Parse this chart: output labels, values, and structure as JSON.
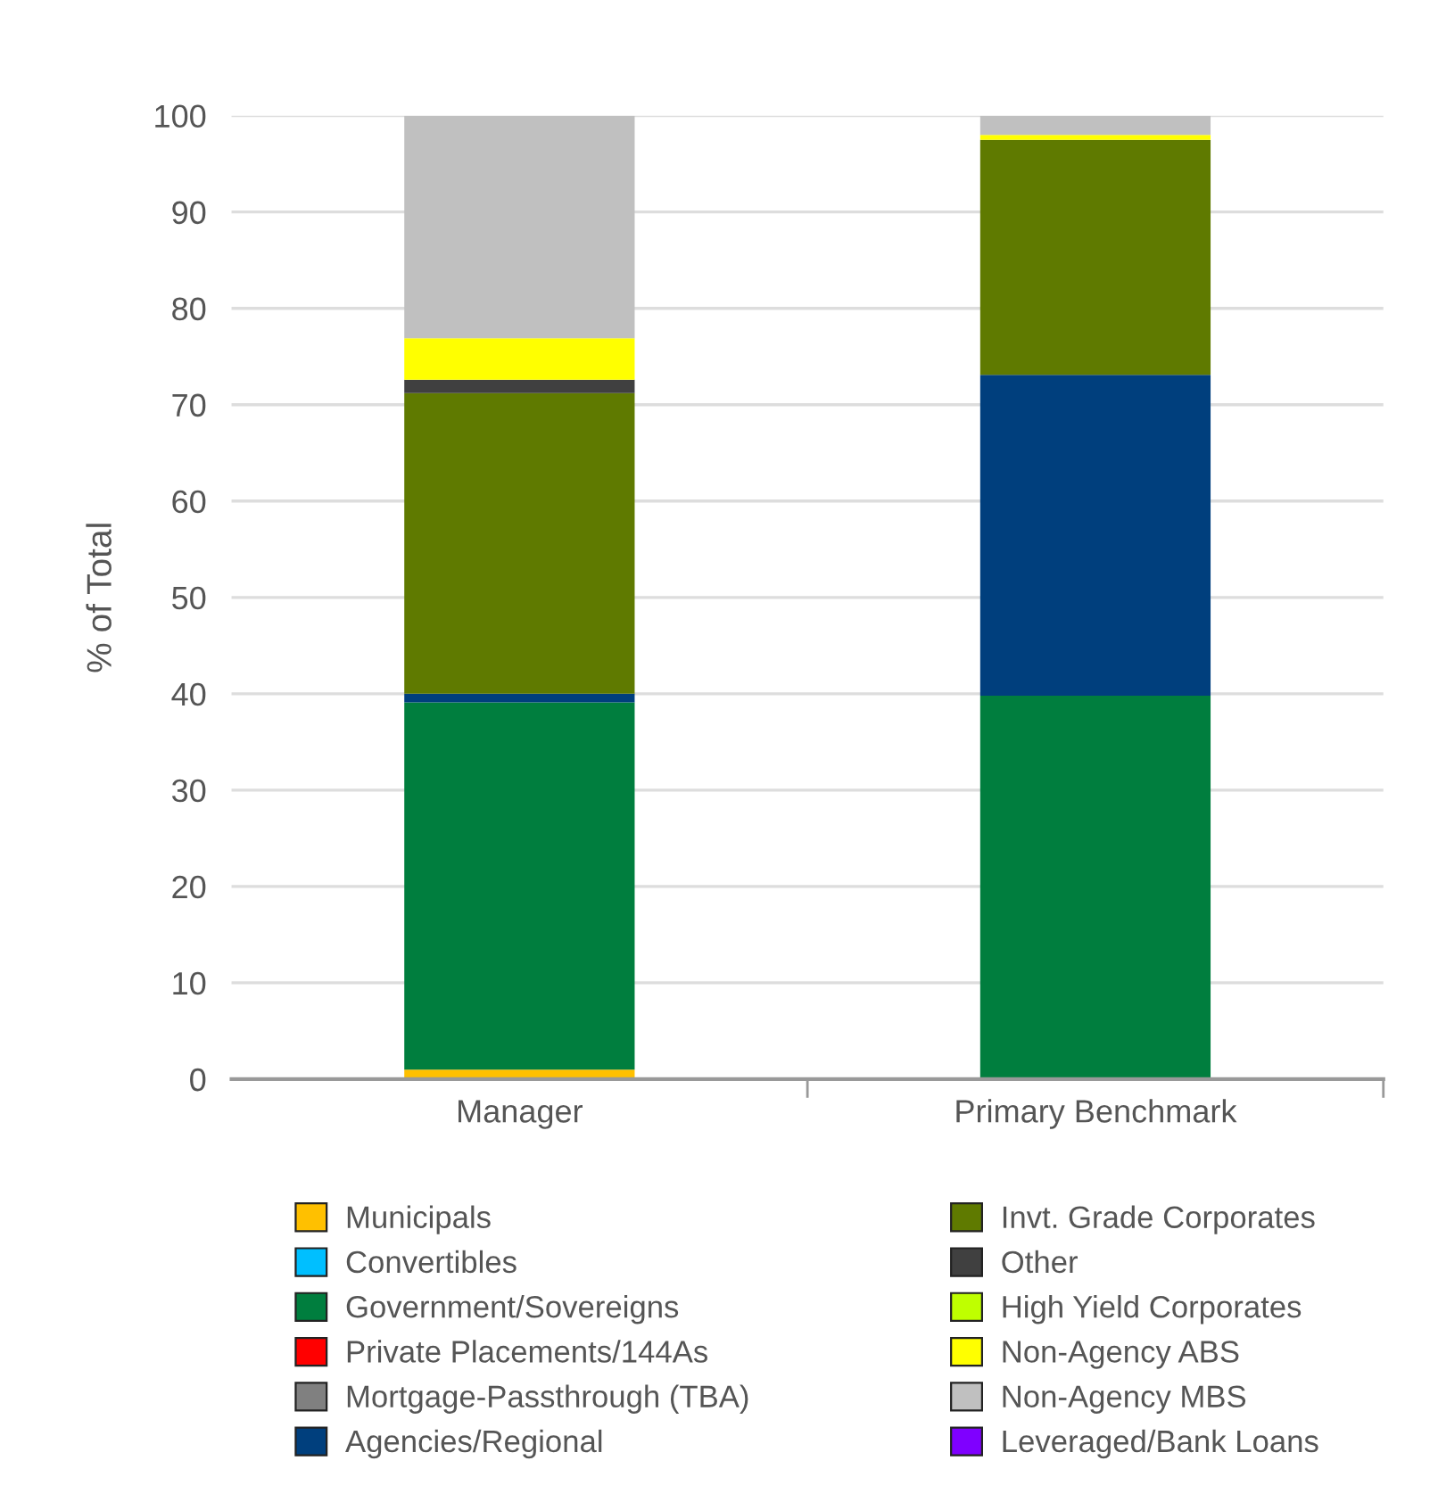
{
  "chart_data": {
    "type": "bar",
    "stacked": true,
    "ylabel": "% of Total",
    "categories": [
      "Manager",
      "Primary Benchmark"
    ],
    "ylim": [
      0,
      100
    ],
    "yticks": [
      0,
      10,
      20,
      30,
      40,
      50,
      60,
      70,
      80,
      90,
      100
    ],
    "grid": "y",
    "legend": "bottom",
    "series": [
      {
        "name": "Municipals",
        "color": "#ffc000",
        "values": [
          1.0,
          0
        ]
      },
      {
        "name": "Convertibles",
        "color": "#00bfff",
        "values": [
          0,
          0
        ]
      },
      {
        "name": "Government/Sovereigns",
        "color": "#007e3e",
        "values": [
          38.1,
          39.8
        ]
      },
      {
        "name": "Private Placements/144As",
        "color": "#ff0000",
        "values": [
          0,
          0
        ]
      },
      {
        "name": "Mortgage-Passthrough (TBA)",
        "color": "#808080",
        "values": [
          0,
          0
        ]
      },
      {
        "name": "Agencies/Regional",
        "color": "#003f7d",
        "values": [
          0.9,
          33.3
        ]
      },
      {
        "name": "Invt. Grade Corporates",
        "color": "#5f7a00",
        "values": [
          31.2,
          24.4
        ]
      },
      {
        "name": "Other",
        "color": "#404040",
        "values": [
          1.4,
          0
        ]
      },
      {
        "name": "High Yield Corporates",
        "color": "#bfff00",
        "values": [
          0,
          0
        ]
      },
      {
        "name": "Non-Agency ABS",
        "color": "#ffff00",
        "values": [
          4.3,
          0.5
        ]
      },
      {
        "name": "Non-Agency MBS",
        "color": "#c0c0c0",
        "values": [
          23.1,
          2.0
        ]
      },
      {
        "name": "Leveraged/Bank Loans",
        "color": "#7f00ff",
        "values": [
          0,
          0
        ]
      }
    ]
  }
}
